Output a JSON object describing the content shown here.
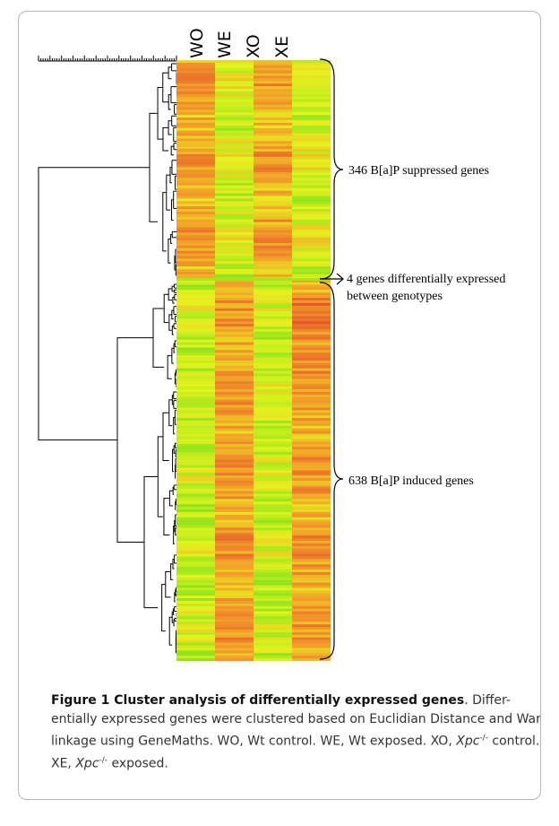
{
  "figure": {
    "columns": [
      "WO",
      "WE",
      "XO",
      "XE"
    ],
    "annotations": {
      "suppressed": "346 B[a]P suppressed genes",
      "differential_line1": "4 genes differentially expressed",
      "differential_line2": "between genotypes",
      "induced": "638 B[a]P induced genes"
    },
    "colors": {
      "green": "#8fe41c",
      "yellow": "#e6f21e",
      "orange": "#f3a02a",
      "red": "#e5572a"
    }
  },
  "caption": {
    "title": "Figure 1 Cluster analysis of differentially expressed genes",
    "text_a": ". Differ-entially expressed genes were clustered based on Euclidian Distance and Ward linkage using GeneMaths. WO, Wt control. WE, Wt exposed. XO, ",
    "xpc1": "Xpc",
    "sup1": "-/-",
    "text_b": " control. XE, ",
    "xpc2": "Xpc",
    "sup2": "-/-",
    "text_c": " exposed."
  }
}
